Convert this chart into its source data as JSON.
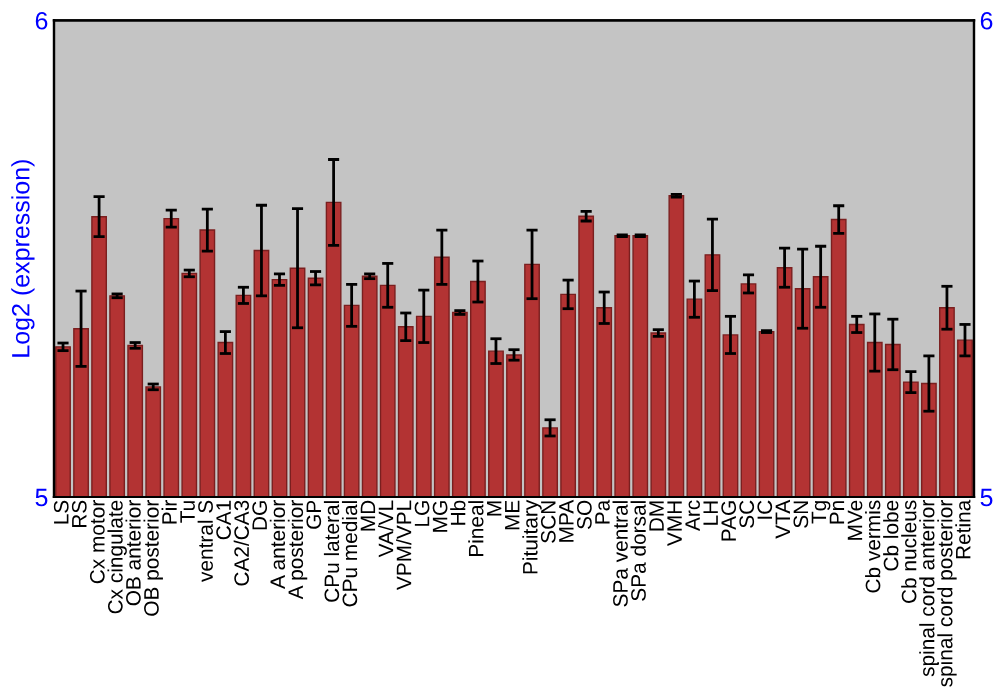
{
  "chart_data": {
    "type": "bar",
    "ylabel": "Log2 (expression)",
    "categories": [
      "LS",
      "RS",
      "Cx motor",
      "Cx cingulate",
      "OB anterior",
      "OB posterior",
      "Pir",
      "Tu",
      "ventral S",
      "CA1",
      "CA2/CA3",
      "DG",
      "A anterior",
      "A posterior",
      "GP",
      "CPu lateral",
      "CPu medial",
      "MD",
      "VA/VL",
      "VPM/VPL",
      "LG",
      "MG",
      "Hb",
      "Pineal",
      "M",
      "ME",
      "Pituitary",
      "SCN",
      "MPA",
      "SO",
      "Pa",
      "SPa ventral",
      "SPa dorsal",
      "DM",
      "VMH",
      "Arc",
      "LH",
      "PAG",
      "SC",
      "IC",
      "VTA",
      "SN",
      "Tg",
      "Pn",
      "MVe",
      "Cb vermis",
      "Cb lobe",
      "Cb nucleus",
      "spinal cord anterior",
      "spinal cord posterior",
      "Retina"
    ],
    "values": [
      5.315,
      5.353,
      5.588,
      5.422,
      5.318,
      5.231,
      5.584,
      5.469,
      5.56,
      5.324,
      5.423,
      5.517,
      5.456,
      5.48,
      5.459,
      5.618,
      5.402,
      5.463,
      5.444,
      5.357,
      5.379,
      5.503,
      5.387,
      5.452,
      5.306,
      5.298,
      5.488,
      5.145,
      5.425,
      5.589,
      5.397,
      5.548,
      5.548,
      5.344,
      5.632,
      5.415,
      5.508,
      5.34,
      5.447,
      5.347,
      5.481,
      5.437,
      5.462,
      5.582,
      5.362,
      5.324,
      5.32,
      5.241,
      5.238,
      5.397,
      5.329
    ],
    "errors": [
      0.008,
      0.079,
      0.042,
      0.004,
      0.006,
      0.006,
      0.018,
      0.007,
      0.044,
      0.023,
      0.017,
      0.095,
      0.012,
      0.125,
      0.014,
      0.09,
      0.044,
      0.005,
      0.046,
      0.029,
      0.055,
      0.057,
      0.004,
      0.043,
      0.026,
      0.011,
      0.072,
      0.017,
      0.03,
      0.01,
      0.033,
      0.002,
      0.002,
      0.007,
      0.003,
      0.038,
      0.075,
      0.039,
      0.019,
      0.002,
      0.041,
      0.083,
      0.064,
      0.029,
      0.017,
      0.06,
      0.053,
      0.022,
      0.058,
      0.045,
      0.033
    ],
    "color": "#b33333",
    "ylim": [
      5,
      6
    ],
    "yticks": [
      5,
      6
    ],
    "y2lim": [
      5,
      6
    ],
    "y2ticks": [
      5,
      6
    ],
    "grid": false,
    "legend": false
  }
}
